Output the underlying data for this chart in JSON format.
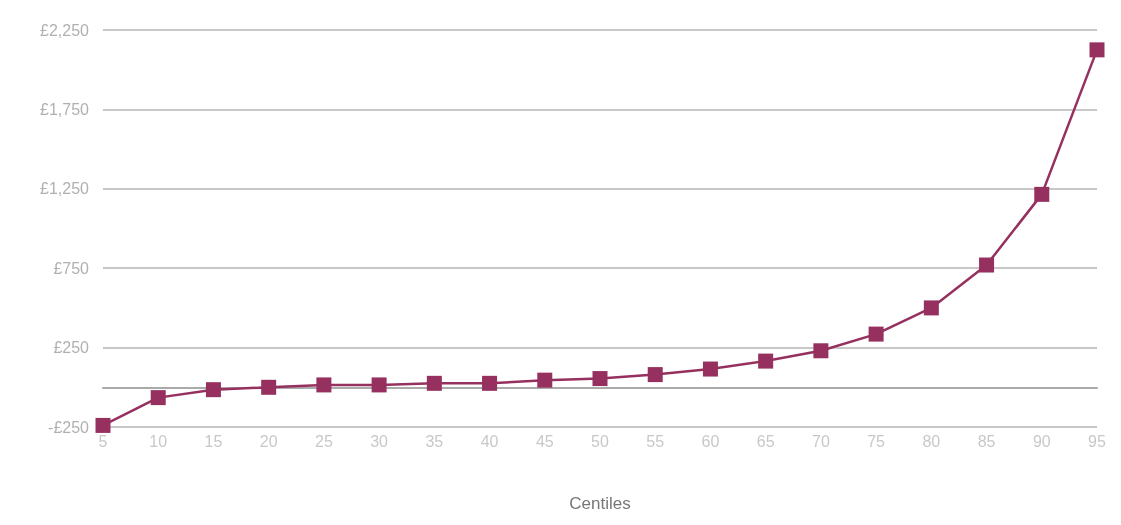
{
  "chart_data": {
    "type": "line",
    "xlabel": "Centiles",
    "categories": [
      "5",
      "10",
      "15",
      "20",
      "25",
      "30",
      "35",
      "40",
      "45",
      "50",
      "55",
      "60",
      "65",
      "70",
      "75",
      "80",
      "85",
      "90",
      "95"
    ],
    "series": [
      {
        "color": "#96305f",
        "values": [
          -240,
          -65,
          -15,
          0,
          15,
          15,
          25,
          25,
          45,
          55,
          80,
          115,
          165,
          230,
          335,
          500,
          770,
          1215,
          2125
        ]
      }
    ],
    "ylim": [
      -250,
      2250
    ],
    "yticks": [
      {
        "value": -250,
        "label": "-£250"
      },
      {
        "value": 250,
        "label": "£250"
      },
      {
        "value": 750,
        "label": "£750"
      },
      {
        "value": 1250,
        "label": "£1,250"
      },
      {
        "value": 1750,
        "label": "£1,750"
      },
      {
        "value": 2250,
        "label": "£2,250"
      }
    ],
    "grid": "y",
    "marker": "square",
    "line_style": "solid"
  }
}
